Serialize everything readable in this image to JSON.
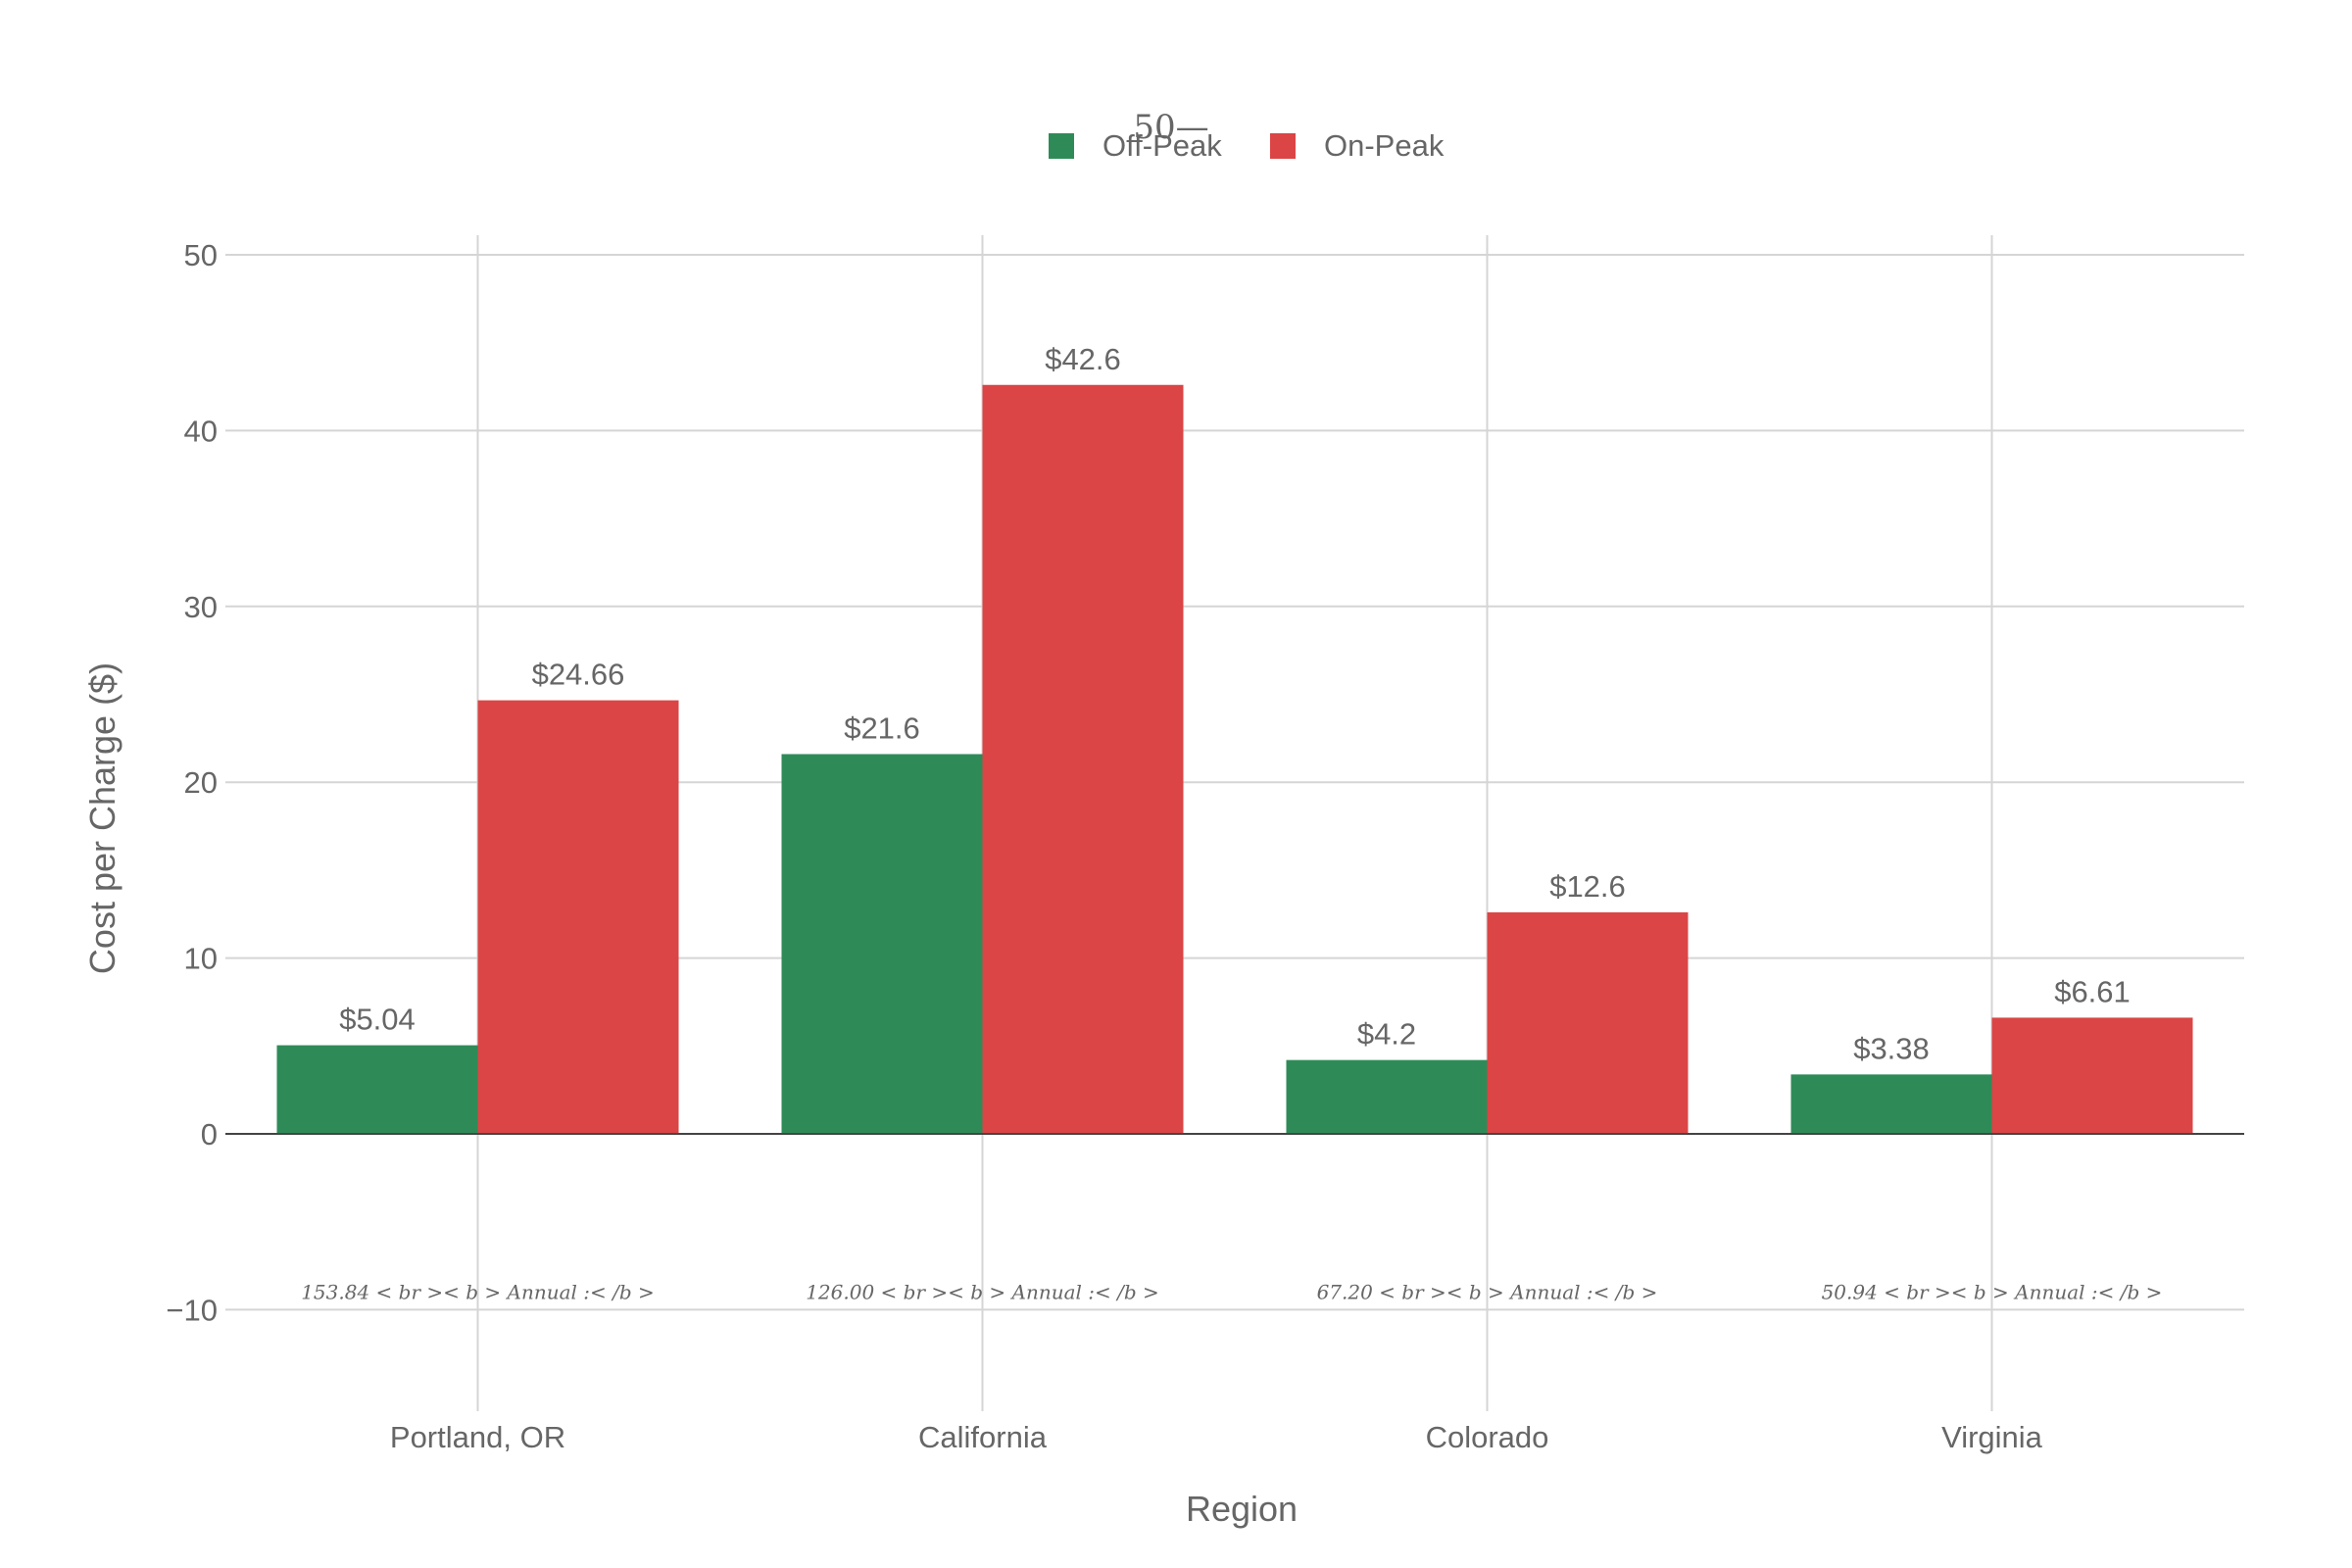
{
  "chart_data": {
    "type": "bar",
    "categories": [
      "Portland, OR",
      "California",
      "Colorado",
      "Virginia"
    ],
    "series": [
      {
        "name": "Off-Peak",
        "color": "#2e8b57",
        "values": [
          5.04,
          21.6,
          4.2,
          3.38
        ],
        "labels": [
          "$5.04",
          "$21.6",
          "$4.2",
          "$3.38"
        ]
      },
      {
        "name": "On-Peak",
        "color": "#db4545",
        "values": [
          24.66,
          42.6,
          12.6,
          6.61
        ],
        "labels": [
          "$24.66",
          "$42.6",
          "$12.6",
          "$6.61"
        ]
      }
    ],
    "title": "",
    "xlabel": "Region",
    "ylabel": "Cost per Charge ($)",
    "ylim": [
      -15,
      51
    ],
    "yticks": [
      -10,
      0,
      10,
      20,
      30,
      40,
      50
    ],
    "ytick_labels": [
      "−10",
      "0",
      "10",
      "20",
      "30",
      "40",
      "50"
    ],
    "annotations": [
      "153.84 < br >< b > Annual :< /b >",
      "126.00 < br >< b > Annual :< /b >",
      "67.20 < br >< b > Annual :< /b >",
      "50.94 < br >< b > Annual :< /b >"
    ],
    "annotation_y": -9,
    "stray_text": "50—",
    "legend_position": "top-center",
    "grid": true
  }
}
